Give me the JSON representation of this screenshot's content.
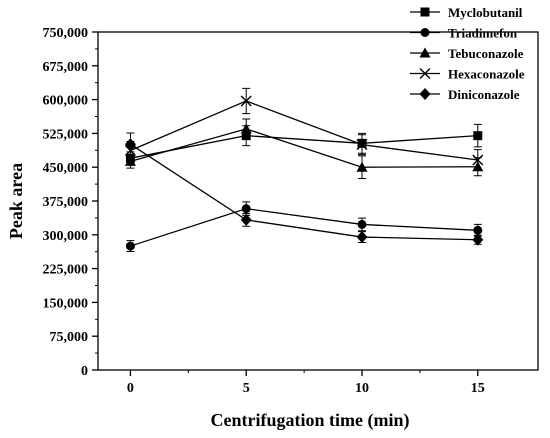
{
  "chart_data": {
    "type": "line",
    "title": "",
    "xlabel": "Centrifugation time (min)",
    "ylabel": "Peak area",
    "x": [
      0,
      5,
      10,
      15
    ],
    "xlim": [
      -1.4,
      17.6
    ],
    "ylim": [
      0,
      750000
    ],
    "x_ticks": [
      0,
      5,
      10,
      15
    ],
    "x_tick_labels": [
      "0",
      "5",
      "10",
      "15"
    ],
    "y_ticks": [
      0,
      75000,
      150000,
      225000,
      300000,
      375000,
      450000,
      525000,
      600000,
      675000,
      750000
    ],
    "y_tick_labels": [
      "0",
      "75,000",
      "150,000",
      "225,000",
      "300,000",
      "375,000",
      "450,000",
      "525,000",
      "600,000",
      "675,000",
      "750,000"
    ],
    "grid": false,
    "legend_position": "top-right",
    "series": [
      {
        "name": "Myclobutanil",
        "marker": "square",
        "values": [
          470000,
          520000,
          503000,
          520000
        ],
        "errors": [
          14000,
          22000,
          22000,
          25000
        ]
      },
      {
        "name": "Triadimefon",
        "marker": "circle",
        "values": [
          275000,
          358000,
          323000,
          310000
        ],
        "errors": [
          12000,
          15000,
          14000,
          13000
        ]
      },
      {
        "name": "Tebuconazole",
        "marker": "triangle",
        "values": [
          463000,
          535000,
          450000,
          451000
        ],
        "errors": [
          15000,
          22000,
          25000,
          20000
        ]
      },
      {
        "name": "Hexaconazole",
        "marker": "x",
        "values": [
          487000,
          597000,
          500000,
          466000
        ],
        "errors": [
          20000,
          28000,
          22000,
          23000
        ]
      },
      {
        "name": "Diniconazole",
        "marker": "diamond",
        "values": [
          501000,
          333000,
          295000,
          289000
        ],
        "errors": [
          25000,
          14000,
          12000,
          10000
        ]
      }
    ]
  }
}
